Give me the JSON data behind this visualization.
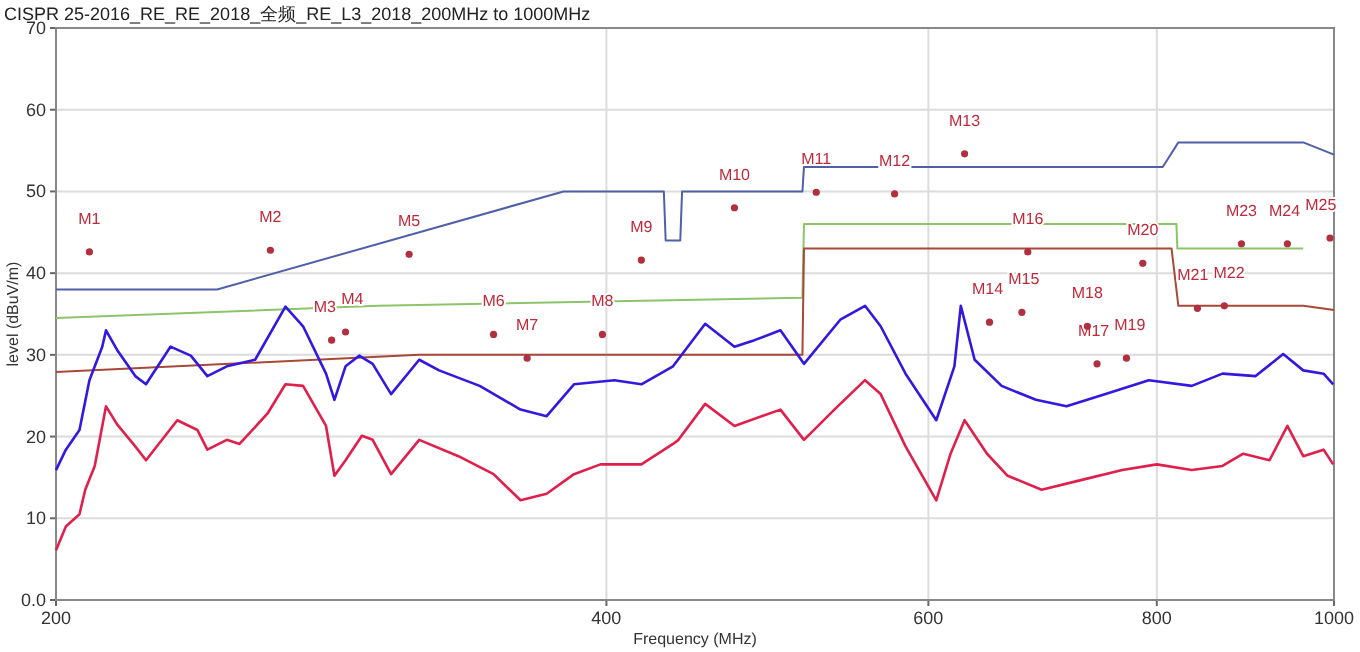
{
  "chart_data": {
    "type": "line",
    "title": "CISPR 25-2016_RE_RE_2018_全频_RE_L3_2018_200MHz to 1000MHz",
    "xlabel": "Frequency (MHz)",
    "ylabel": "level (dBuV/m)",
    "log": "x",
    "xlim": [
      200,
      1000
    ],
    "xticks": [
      200,
      400,
      600,
      800,
      1000
    ],
    "ylim": [
      0,
      70
    ],
    "yticks": [
      {
        "value": 0,
        "label": "0.0"
      },
      10,
      20,
      30,
      40,
      50,
      60,
      70
    ],
    "grid": true,
    "series": [
      {
        "color": "#5060a8",
        "x": [
          200,
          245,
          379,
          430,
          431,
          439,
          440,
          512,
          513,
          806,
          822,
          962,
          1000
        ],
        "values": [
          38,
          38,
          50,
          50,
          44,
          44,
          50,
          50,
          53,
          53,
          56,
          56,
          54.5
        ]
      },
      {
        "color": "#8cc46a",
        "x": [
          200,
          300,
          512,
          513,
          820,
          821,
          962
        ],
        "values": [
          34.5,
          36,
          37,
          46,
          46,
          43,
          43
        ]
      },
      {
        "color": "#a84838",
        "x": [
          200,
          316,
          512,
          513,
          815,
          822,
          962,
          1000
        ],
        "values": [
          27.9,
          30,
          30,
          43,
          43,
          36,
          36,
          35.5
        ]
      },
      {
        "color": "#3318e0",
        "x": [
          200,
          202.5,
          206,
          208.6,
          212,
          213,
          216,
          221,
          224,
          231,
          237,
          242,
          248,
          257,
          267,
          273,
          281,
          284,
          288,
          293,
          298,
          305,
          316,
          324,
          341,
          359,
          371,
          384,
          404,
          418,
          435,
          453,
          470,
          482,
          498,
          513,
          537,
          554,
          565,
          583,
          606,
          620,
          625,
          636,
          658,
          687,
          714,
          750,
          792,
          836,
          869,
          906,
          938,
          962,
          987,
          999
        ],
        "values": [
          15.9,
          18.4,
          20.8,
          26.9,
          31,
          33,
          30.6,
          27.4,
          26.4,
          31,
          29.9,
          27.4,
          28.6,
          29.4,
          35.9,
          33.5,
          27.7,
          24.5,
          28.6,
          29.9,
          28.9,
          25.2,
          29.4,
          28.1,
          26.2,
          23.3,
          22.5,
          26.4,
          26.9,
          26.4,
          28.6,
          33.8,
          31,
          31.8,
          33,
          28.9,
          34.3,
          36,
          33.5,
          27.7,
          22,
          28.6,
          36,
          29.4,
          26.2,
          24.5,
          23.7,
          25.2,
          26.9,
          26.2,
          27.7,
          27.4,
          30.1,
          28.1,
          27.7,
          26.4
        ]
      },
      {
        "color": "#e0204c",
        "x": [
          200,
          202.5,
          206,
          207.5,
          210,
          213,
          216,
          221,
          224,
          233,
          239,
          242,
          248,
          252,
          261,
          267,
          273,
          281,
          284,
          288,
          294,
          298,
          305,
          316,
          332,
          347,
          359,
          371,
          384,
          397,
          418,
          435,
          438,
          453,
          470,
          498,
          513,
          533,
          554,
          565,
          583,
          606,
          617,
          628,
          646,
          663,
          692,
          728,
          766,
          800,
          836,
          869,
          892,
          922,
          943,
          962,
          987,
          999
        ],
        "values": [
          6.1,
          9,
          10.5,
          13.5,
          16.4,
          23.7,
          21.5,
          18.8,
          17.1,
          22,
          20.8,
          18.4,
          19.6,
          19.1,
          22.8,
          26.4,
          26.2,
          21.3,
          15.2,
          17.1,
          20.1,
          19.6,
          15.4,
          19.6,
          17.6,
          15.4,
          12.2,
          13,
          15.4,
          16.6,
          16.6,
          19.1,
          19.6,
          24,
          21.3,
          23.3,
          19.6,
          23.3,
          26.9,
          25.2,
          18.8,
          12.2,
          17.9,
          22,
          17.9,
          15.2,
          13.5,
          14.7,
          15.9,
          16.6,
          15.9,
          16.4,
          17.9,
          17.1,
          21.3,
          17.6,
          18.4,
          16.6
        ]
      }
    ],
    "annotations": [
      {
        "text": "M1",
        "x": 208.6,
        "y": 42.6
      },
      {
        "text": "M2",
        "x": 262,
        "y": 42.8
      },
      {
        "text": "M3",
        "x": 283,
        "y": 31.8
      },
      {
        "text": "M4",
        "x": 288,
        "y": 32.8
      },
      {
        "text": "M5",
        "x": 312,
        "y": 42.3
      },
      {
        "text": "M6",
        "x": 347,
        "y": 32.5
      },
      {
        "text": "M7",
        "x": 362,
        "y": 29.6
      },
      {
        "text": "M8",
        "x": 398,
        "y": 32.5
      },
      {
        "text": "M9",
        "x": 418,
        "y": 41.6
      },
      {
        "text": "M10",
        "x": 470,
        "y": 48
      },
      {
        "text": "M11",
        "x": 521,
        "y": 49.9
      },
      {
        "text": "M12",
        "x": 575,
        "y": 49.7
      },
      {
        "text": "M13",
        "x": 628,
        "y": 54.6
      },
      {
        "text": "M14",
        "x": 648,
        "y": 34
      },
      {
        "text": "M15",
        "x": 675,
        "y": 35.2
      },
      {
        "text": "M16",
        "x": 680,
        "y": 42.6
      },
      {
        "text": "M17",
        "x": 742,
        "y": 28.9
      },
      {
        "text": "M18",
        "x": 733,
        "y": 33.5
      },
      {
        "text": "M19",
        "x": 770,
        "y": 29.6
      },
      {
        "text": "M20",
        "x": 786,
        "y": 41.2
      },
      {
        "text": "M21",
        "x": 842,
        "y": 35.7
      },
      {
        "text": "M22",
        "x": 871,
        "y": 36
      },
      {
        "text": "M23",
        "x": 890,
        "y": 43.6
      },
      {
        "text": "M24",
        "x": 943,
        "y": 43.6
      },
      {
        "text": "M25",
        "x": 995,
        "y": 44.3
      }
    ]
  }
}
